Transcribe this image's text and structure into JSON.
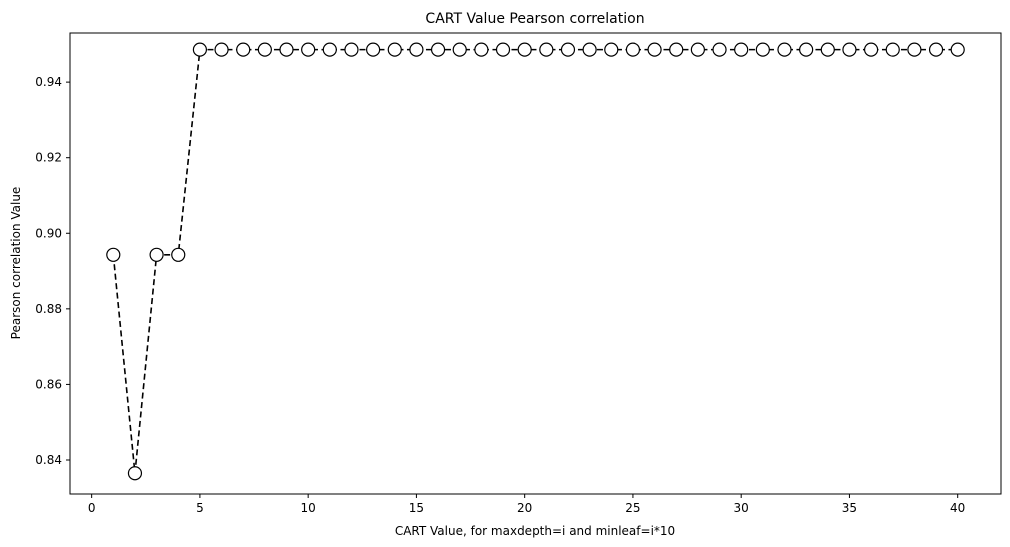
{
  "chart_data": {
    "type": "line",
    "title": "CART Value Pearson correlation",
    "xlabel": "CART Value, for maxdepth=i and minleaf=i*10",
    "ylabel": "Pearson correlation Value",
    "xlim": [
      -1,
      42
    ],
    "ylim": [
      0.831,
      0.953
    ],
    "xticks": [
      0,
      5,
      10,
      15,
      20,
      25,
      30,
      35,
      40
    ],
    "yticks": [
      0.84,
      0.86,
      0.88,
      0.9,
      0.92,
      0.94
    ],
    "ytick_format": 2,
    "grid": false,
    "line_style": "dashed",
    "line_color": "#000000",
    "marker": "circle",
    "marker_face": "#ffffff",
    "marker_edge": "#000000",
    "x": [
      1,
      2,
      3,
      4,
      5,
      6,
      7,
      8,
      9,
      10,
      11,
      12,
      13,
      14,
      15,
      16,
      17,
      18,
      19,
      20,
      21,
      22,
      23,
      24,
      25,
      26,
      27,
      28,
      29,
      30,
      31,
      32,
      33,
      34,
      35,
      36,
      37,
      38,
      39,
      40
    ],
    "y": [
      0.8943,
      0.8365,
      0.8943,
      0.8943,
      0.9486,
      0.9486,
      0.9486,
      0.9486,
      0.9486,
      0.9486,
      0.9486,
      0.9486,
      0.9486,
      0.9486,
      0.9486,
      0.9486,
      0.9486,
      0.9486,
      0.9486,
      0.9486,
      0.9486,
      0.9486,
      0.9486,
      0.9486,
      0.9486,
      0.9486,
      0.9486,
      0.9486,
      0.9486,
      0.9486,
      0.9486,
      0.9486,
      0.9486,
      0.9486,
      0.9486,
      0.9486,
      0.9486,
      0.9486,
      0.9486,
      0.9486
    ]
  }
}
